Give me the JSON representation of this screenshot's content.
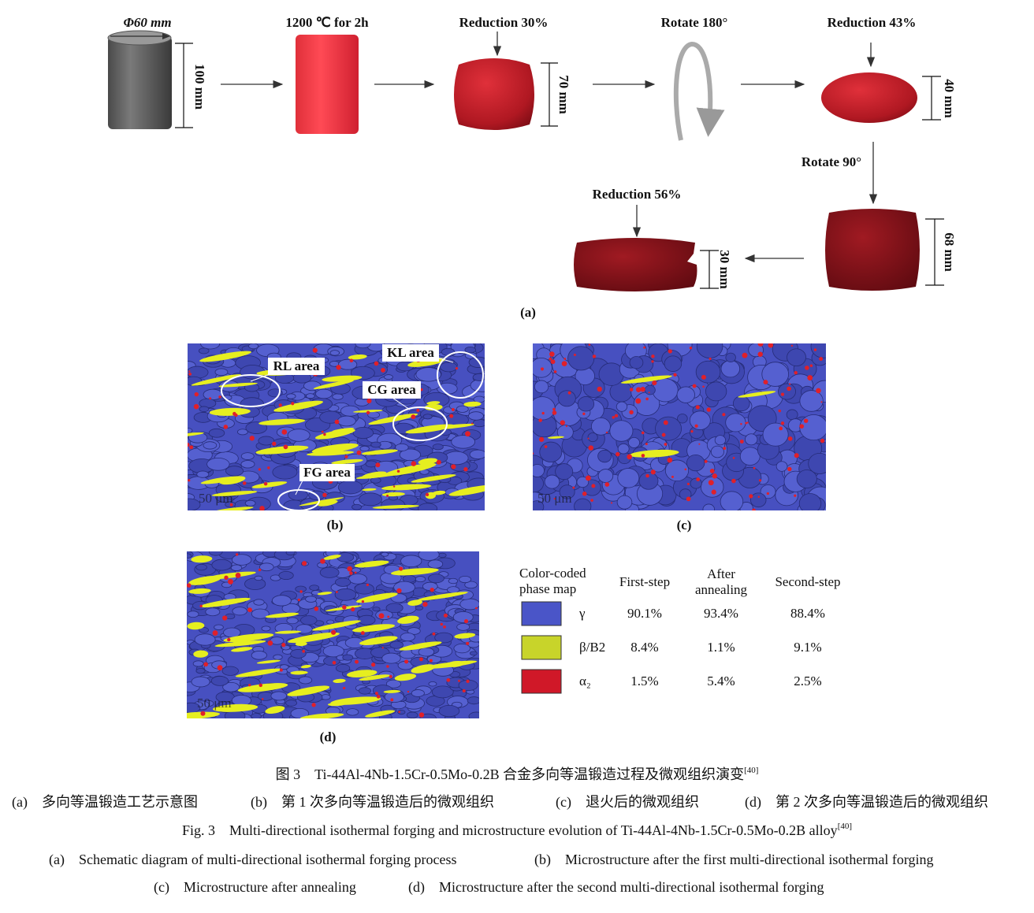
{
  "panel_a": {
    "steps": [
      {
        "label": "Φ60 mm",
        "dim": "100 mm"
      },
      {
        "label": "1200 ℃ for 2h"
      },
      {
        "label": "Reduction 30%",
        "dim": "70 mm"
      },
      {
        "label": "Rotate 180°"
      },
      {
        "label": "Reduction 43%",
        "dim": "40 mm"
      },
      {
        "label": "Rotate 90°",
        "dim": "68 mm"
      },
      {
        "label": "Reduction 56%",
        "dim": "30 mm"
      }
    ],
    "caption": "(a)"
  },
  "panel_b": {
    "areas": [
      "RL area",
      "KL area",
      "CG area",
      "FG area"
    ],
    "scale": "50 μm",
    "caption": "(b)"
  },
  "panel_c": {
    "scale": "50 μm",
    "caption": "(c)"
  },
  "panel_d": {
    "scale": "50 μm",
    "caption": "(d)"
  },
  "legend_table": {
    "header": [
      "Color-coded phase map",
      "First-step",
      "After annealing",
      "Second-step"
    ],
    "rows": [
      [
        "γ",
        "90.1%",
        "93.4%",
        "88.4%"
      ],
      [
        "β/B2",
        "8.4%",
        "1.1%",
        "9.1%"
      ],
      [
        "α₂",
        "1.5%",
        "5.4%",
        "2.5%"
      ]
    ]
  },
  "caption": {
    "zh_title": "图 3　Ti-44Al-4Nb-1.5Cr-0.5Mo-0.2B 合金多向等温锻造过程及微观组织演变",
    "zh_ref": "[40]",
    "zh_sub": [
      "(a)　多向等温锻造工艺示意图",
      "(b)　第 1 次多向等温锻造后的微观组织",
      "(c)　退火后的微观组织",
      "(d)　第 2 次多向等温锻造后的微观组织"
    ],
    "en_title": "Fig. 3　Multi-directional isothermal forging and microstructure evolution of Ti-44Al-4Nb-1.5Cr-0.5Mo-0.2B alloy",
    "en_ref": "[40]",
    "en_sub": [
      "(a)　Schematic diagram of multi-directional isothermal forging process",
      "(b)　Microstructure after the first multi-directional isothermal forging",
      "(c)　Microstructure after annealing",
      "(d)　Microstructure after the second multi-directional isothermal forging"
    ]
  }
}
